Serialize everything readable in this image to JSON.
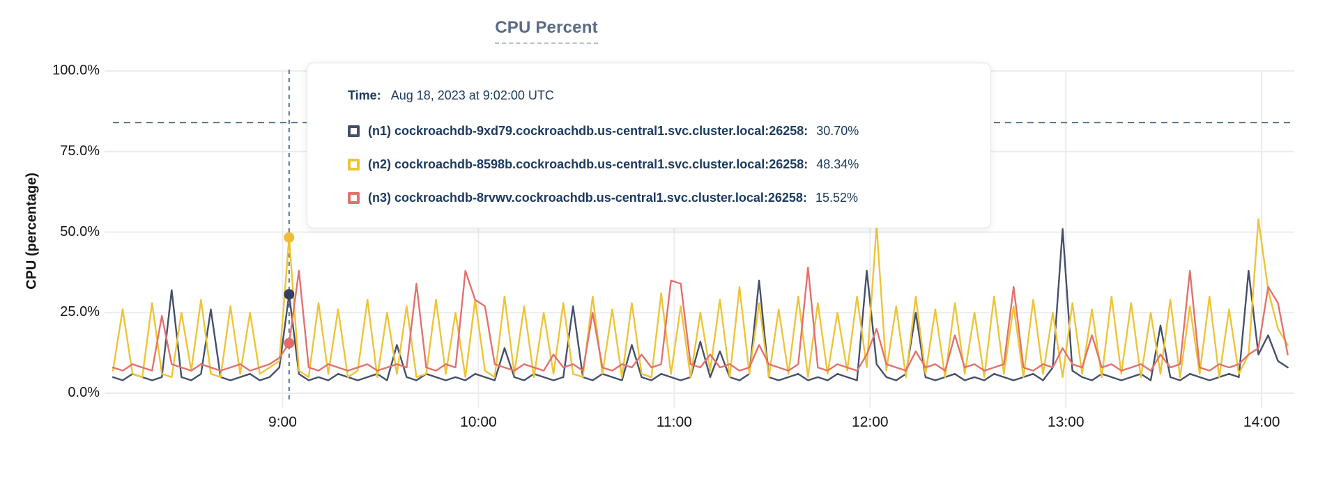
{
  "title": "CPU Percent",
  "y_axis_label": "CPU (percentage)",
  "tooltip": {
    "time_label": "Time:",
    "time_value": "Aug 18, 2023 at 9:02:00 UTC"
  },
  "colors": {
    "background": "#ffffff",
    "gridline": "#ececec",
    "axis_text": "#161616",
    "title_text": "#5a6b85",
    "tooltip_text": "#1c3a60",
    "threshold_line": "#53718c",
    "hover_line": "#53718c"
  },
  "chart_data": {
    "type": "line",
    "title": "CPU Percent",
    "xlabel": "",
    "ylabel": "CPU (percentage)",
    "ylim": [
      0,
      100
    ],
    "grid": true,
    "legend_position": "tooltip-overlay",
    "x_domain_minutes": [
      488,
      850
    ],
    "x_step_minutes": 3,
    "threshold_pct": 84,
    "hover": {
      "t_minutes": 542,
      "time": "Aug 18, 2023 at 9:02:00 UTC"
    },
    "yticks": [
      {
        "pct": 0,
        "label": "0.0%"
      },
      {
        "pct": 25,
        "label": "25.0%"
      },
      {
        "pct": 50,
        "label": "50.0%"
      },
      {
        "pct": 75,
        "label": "75.0%"
      },
      {
        "pct": 100,
        "label": "100.0%"
      }
    ],
    "xticks": [
      {
        "minutes": 540,
        "label": "9:00"
      },
      {
        "minutes": 600,
        "label": "10:00"
      },
      {
        "minutes": 660,
        "label": "11:00"
      },
      {
        "minutes": 720,
        "label": "12:00"
      },
      {
        "minutes": 780,
        "label": "13:00"
      },
      {
        "minutes": 840,
        "label": "14:00"
      }
    ],
    "series": [
      {
        "id": "n1",
        "color": "#44506b",
        "dot_color": "#333f5c",
        "label": "(n1) cockroachdb-9xd79.cockroachdb.us-central1.svc.cluster.local:26258:",
        "value": "30.70%",
        "hover_pct": 30.7,
        "values": [
          5,
          4,
          6,
          5,
          4,
          5,
          32,
          5,
          4,
          6,
          26,
          5,
          4,
          5,
          6,
          4,
          5,
          8,
          30.7,
          6,
          4,
          5,
          4,
          6,
          5,
          4,
          5,
          6,
          4,
          15,
          5,
          4,
          6,
          5,
          4,
          5,
          4,
          6,
          5,
          4,
          14,
          5,
          4,
          6,
          5,
          4,
          5,
          27,
          5,
          4,
          6,
          5,
          4,
          15,
          5,
          4,
          6,
          5,
          4,
          5,
          16,
          5,
          13,
          5,
          4,
          6,
          35,
          5,
          4,
          5,
          6,
          4,
          5,
          4,
          6,
          5,
          4,
          38,
          9,
          5,
          4,
          6,
          25,
          5,
          4,
          5,
          6,
          4,
          5,
          4,
          6,
          5,
          4,
          5,
          6,
          4,
          8,
          51,
          7,
          5,
          4,
          6,
          5,
          4,
          5,
          6,
          4,
          21,
          5,
          4,
          6,
          5,
          4,
          5,
          6,
          5,
          38,
          12,
          18,
          10,
          8
        ]
      },
      {
        "id": "n2",
        "color": "#eec437",
        "dot_color": "#f0bd34",
        "label": "(n2) cockroachdb-8598b.cockroachdb.us-central1.svc.cluster.local:26258:",
        "value": "48.34%",
        "hover_pct": 48.34,
        "values": [
          7,
          26,
          6,
          5,
          28,
          6,
          5,
          25,
          7,
          29,
          6,
          5,
          27,
          6,
          25,
          6,
          8,
          10,
          48.3,
          7,
          5,
          28,
          6,
          26,
          5,
          7,
          29,
          5,
          25,
          6,
          27,
          5,
          6,
          29,
          6,
          25,
          5,
          29,
          7,
          5,
          30,
          6,
          27,
          5,
          25,
          6,
          28,
          6,
          5,
          30,
          6,
          26,
          5,
          28,
          6,
          5,
          31,
          6,
          27,
          5,
          25,
          7,
          29,
          5,
          33,
          6,
          28,
          5,
          26,
          6,
          30,
          5,
          28,
          6,
          25,
          7,
          30,
          8,
          52,
          7,
          27,
          5,
          30,
          6,
          26,
          5,
          28,
          6,
          25,
          5,
          30,
          6,
          27,
          5,
          29,
          6,
          25,
          5,
          28,
          6,
          26,
          5,
          30,
          6,
          28,
          5,
          25,
          6,
          29,
          5,
          27,
          6,
          30,
          5,
          26,
          6,
          12,
          54,
          32,
          20,
          15
        ]
      },
      {
        "id": "n3",
        "color": "#e3716d",
        "dot_color": "#e06b67",
        "label": "(n3) cockroachdb-8rvwv.cockroachdb.us-central1.svc.cluster.local:26258:",
        "value": "15.52%",
        "hover_pct": 15.52,
        "values": [
          8,
          7,
          9,
          8,
          7,
          24,
          9,
          8,
          7,
          9,
          8,
          7,
          8,
          9,
          7,
          8,
          9,
          11,
          15.5,
          38,
          8,
          7,
          9,
          8,
          7,
          8,
          9,
          7,
          8,
          9,
          8,
          34,
          8,
          7,
          9,
          8,
          38,
          29,
          27,
          9,
          8,
          7,
          9,
          8,
          7,
          12,
          8,
          9,
          7,
          25,
          8,
          7,
          9,
          8,
          12,
          8,
          9,
          35,
          34,
          9,
          8,
          12,
          8,
          9,
          7,
          8,
          15,
          9,
          8,
          7,
          9,
          39,
          8,
          7,
          9,
          8,
          7,
          12,
          20,
          9,
          8,
          7,
          13,
          8,
          9,
          7,
          18,
          8,
          9,
          7,
          8,
          9,
          33,
          8,
          7,
          9,
          8,
          14,
          9,
          8,
          18,
          8,
          9,
          7,
          8,
          9,
          7,
          12,
          8,
          9,
          38,
          8,
          7,
          9,
          8,
          9,
          12,
          14,
          33,
          28,
          12
        ]
      }
    ]
  }
}
